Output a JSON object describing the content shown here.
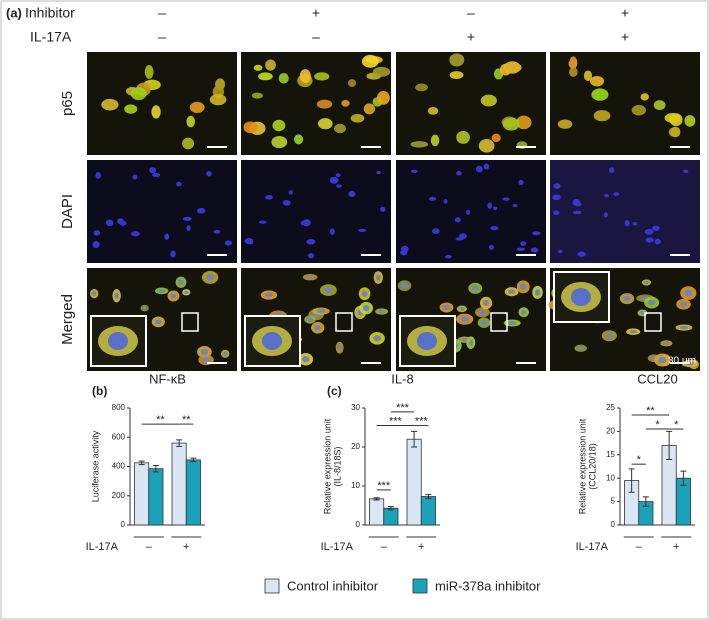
{
  "header": {
    "panel": "(a)",
    "rows": [
      {
        "label": "Inhibitor",
        "values": [
          "–",
          "+",
          "–",
          "+"
        ]
      },
      {
        "label": "IL-17A",
        "values": [
          "–",
          "–",
          "+",
          "+"
        ]
      }
    ]
  },
  "image_rows": [
    "p65",
    "DAPI",
    "Merged"
  ],
  "scale_bar": "30 μm",
  "chart_data": [
    {
      "type": "bar",
      "panel": "(b)",
      "title": "NF-κB",
      "ylabel": "Luciferase activity",
      "xlabel": "IL-17A",
      "categories": [
        "–",
        "+"
      ],
      "ylim": [
        0,
        800
      ],
      "yticks": [
        0,
        200,
        400,
        600,
        800
      ],
      "series": [
        {
          "name": "Control inhibitor",
          "color": "#dbe6f4",
          "values": [
            425,
            560
          ],
          "errors": [
            12,
            22
          ]
        },
        {
          "name": "miR-378a inhibitor",
          "color": "#1aa3b8",
          "values": [
            385,
            445
          ],
          "errors": [
            22,
            12
          ]
        }
      ],
      "annotations": [
        "**",
        "**"
      ]
    },
    {
      "type": "bar",
      "panel": "(c)",
      "title": "IL-8",
      "ylabel": [
        "Relative expression unit",
        "(IL-8/18S)"
      ],
      "xlabel": "IL-17A",
      "categories": [
        "–",
        "+"
      ],
      "ylim": [
        0,
        30
      ],
      "yticks": [
        0,
        10,
        20,
        30
      ],
      "series": [
        {
          "color": "#dbe6f4",
          "values": [
            6.7,
            22
          ],
          "errors": [
            0.3,
            2
          ]
        },
        {
          "color": "#1aa3b8",
          "values": [
            4.3,
            7.3
          ],
          "errors": [
            0.4,
            0.5
          ]
        }
      ],
      "annotations": [
        "***",
        "***",
        "***",
        "***"
      ]
    },
    {
      "type": "bar",
      "title": "CCL20",
      "ylabel": [
        "Relative expression unit",
        "(CCL20/18)"
      ],
      "xlabel": "IL-17A",
      "categories": [
        "–",
        "+"
      ],
      "ylim": [
        0,
        25
      ],
      "yticks": [
        0,
        5,
        10,
        15,
        20,
        25
      ],
      "series": [
        {
          "color": "#dbe6f4",
          "values": [
            9.5,
            17
          ],
          "errors": [
            2.5,
            3
          ]
        },
        {
          "color": "#1aa3b8",
          "values": [
            5,
            10
          ],
          "errors": [
            1,
            1.5
          ]
        }
      ],
      "annotations": [
        "*",
        "**",
        "*",
        "*"
      ]
    }
  ]
}
